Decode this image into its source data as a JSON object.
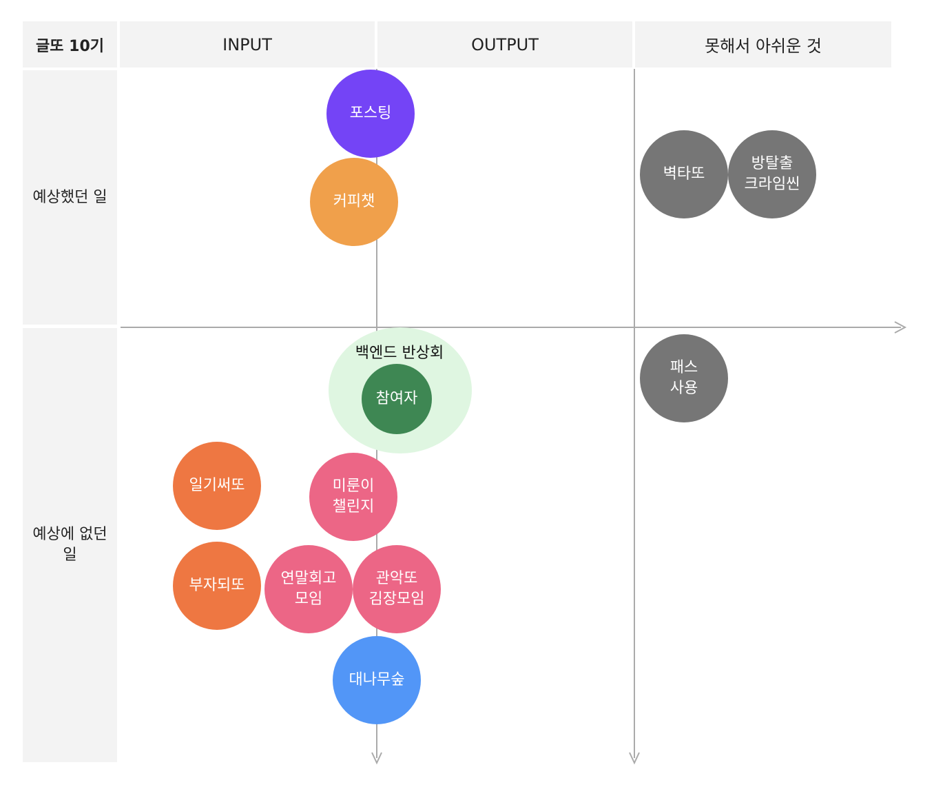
{
  "header": {
    "corner": "글또 10기",
    "columns": [
      "INPUT",
      "OUTPUT",
      "못해서 아쉬운 것"
    ]
  },
  "rows": [
    "예상했던 일",
    "예상에 없던\n일"
  ],
  "group": {
    "label": "백엔드 반상회",
    "color": "#dff6e1"
  },
  "items": {
    "posting": {
      "label": "포스팅",
      "color": "#7444f6"
    },
    "coffee": {
      "label": "커피챗",
      "color": "#f0a04b"
    },
    "byeoktatto": {
      "label": "벽타또",
      "color": "#767676"
    },
    "escape": {
      "label": "방탈출\n크라임씬",
      "color": "#767676"
    },
    "participant": {
      "label": "참여자",
      "color": "#3e8753"
    },
    "pass": {
      "label": "패스\n사용",
      "color": "#767676"
    },
    "diary": {
      "label": "일기써또",
      "color": "#ee7742"
    },
    "procrastinator": {
      "label": "미룬이\n챌린지",
      "color": "#ec6686"
    },
    "rich": {
      "label": "부자되또",
      "color": "#ee7742"
    },
    "yearend": {
      "label": "연말회고\n모임",
      "color": "#ec6686"
    },
    "gwanak": {
      "label": "관악또\n김장모임",
      "color": "#ec6686"
    },
    "bamboo": {
      "label": "대나무숲",
      "color": "#5296f7"
    }
  },
  "axis_color": "#aaaaaa"
}
